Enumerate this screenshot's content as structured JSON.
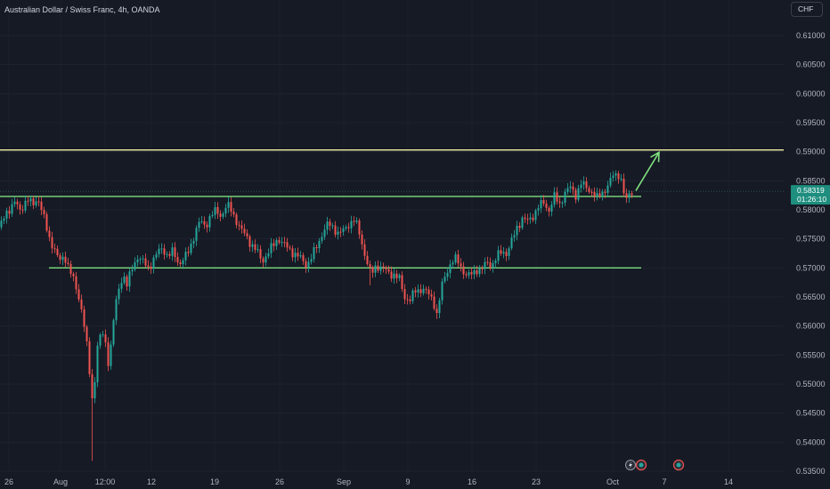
{
  "chart_data": {
    "type": "candlestick",
    "title": "Australian Dollar / Swiss Franc, 4h, OANDA",
    "currency": "CHF",
    "x_labels": [
      "26",
      "Aug",
      "12:00",
      "12",
      "19",
      "26",
      "Sep",
      "9",
      "16",
      "23",
      "Oct",
      "7",
      "14"
    ],
    "y_ticks": [
      "0.61000",
      "0.60500",
      "0.60000",
      "0.59500",
      "0.59000",
      "0.58500",
      "0.58000",
      "0.57500",
      "0.57000",
      "0.56500",
      "0.56000",
      "0.55500",
      "0.55000",
      "0.54500",
      "0.54000",
      "0.53500"
    ],
    "ylim": [
      0.5345,
      0.6142
    ],
    "current_price": "0.58319",
    "countdown": "01:26:10",
    "horizontal_levels": [
      {
        "value": 0.5903,
        "color": "#f3f0a8"
      },
      {
        "value": 0.5823,
        "color": "#7ee07e"
      },
      {
        "value": 0.57,
        "color": "#7ee07e"
      }
    ],
    "arrow": {
      "from": 0.5833,
      "to": 0.5899,
      "color": "#7ee07e"
    },
    "path": [
      [
        0.577,
        0
      ],
      [
        0.5795,
        6
      ],
      [
        0.5812,
        16
      ],
      [
        0.58,
        22
      ],
      [
        0.5818,
        30
      ],
      [
        0.5808,
        36
      ],
      [
        0.5822,
        42
      ],
      [
        0.579,
        48
      ],
      [
        0.5755,
        54
      ],
      [
        0.5735,
        60
      ],
      [
        0.571,
        66
      ],
      [
        0.5722,
        72
      ],
      [
        0.5695,
        78
      ],
      [
        0.567,
        84
      ],
      [
        0.564,
        90
      ],
      [
        0.558,
        96
      ],
      [
        0.552,
        100
      ],
      [
        0.546,
        104
      ],
      [
        0.556,
        108
      ],
      [
        0.559,
        114
      ],
      [
        0.557,
        118
      ],
      [
        0.553,
        122
      ],
      [
        0.56,
        126
      ],
      [
        0.566,
        132
      ],
      [
        0.569,
        138
      ],
      [
        0.567,
        142
      ],
      [
        0.57,
        148
      ],
      [
        0.572,
        154
      ],
      [
        0.571,
        160
      ],
      [
        0.57,
        166
      ],
      [
        0.571,
        170
      ],
      [
        0.5725,
        176
      ],
      [
        0.5735,
        182
      ],
      [
        0.572,
        188
      ],
      [
        0.5728,
        194
      ],
      [
        0.5708,
        200
      ],
      [
        0.5715,
        206
      ],
      [
        0.573,
        212
      ],
      [
        0.576,
        218
      ],
      [
        0.578,
        224
      ],
      [
        0.5772,
        230
      ],
      [
        0.579,
        236
      ],
      [
        0.5798,
        242
      ],
      [
        0.579,
        248
      ],
      [
        0.5808,
        254
      ],
      [
        0.5802,
        258
      ],
      [
        0.5785,
        264
      ],
      [
        0.5765,
        270
      ],
      [
        0.5755,
        276
      ],
      [
        0.574,
        282
      ],
      [
        0.5728,
        288
      ],
      [
        0.5712,
        294
      ],
      [
        0.5725,
        300
      ],
      [
        0.5738,
        306
      ],
      [
        0.5752,
        312
      ],
      [
        0.574,
        318
      ],
      [
        0.573,
        326
      ],
      [
        0.5722,
        332
      ],
      [
        0.5715,
        338
      ],
      [
        0.5705,
        344
      ],
      [
        0.572,
        350
      ],
      [
        0.574,
        356
      ],
      [
        0.5762,
        362
      ],
      [
        0.5775,
        368
      ],
      [
        0.577,
        374
      ],
      [
        0.5758,
        380
      ],
      [
        0.5765,
        386
      ],
      [
        0.5778,
        392
      ],
      [
        0.5782,
        398
      ],
      [
        0.5755,
        404
      ],
      [
        0.5718,
        410
      ],
      [
        0.5688,
        416
      ],
      [
        0.5705,
        422
      ],
      [
        0.57,
        428
      ],
      [
        0.5692,
        436
      ],
      [
        0.5688,
        442
      ],
      [
        0.568,
        448
      ],
      [
        0.565,
        454
      ],
      [
        0.5645,
        460
      ],
      [
        0.566,
        466
      ],
      [
        0.5665,
        474
      ],
      [
        0.5655,
        480
      ],
      [
        0.5645,
        486
      ],
      [
        0.562,
        490
      ],
      [
        0.567,
        496
      ],
      [
        0.569,
        500
      ],
      [
        0.571,
        506
      ],
      [
        0.5715,
        512
      ],
      [
        0.57,
        518
      ],
      [
        0.5685,
        524
      ],
      [
        0.569,
        530
      ],
      [
        0.57,
        536
      ],
      [
        0.5695,
        540
      ],
      [
        0.571,
        546
      ],
      [
        0.5705,
        552
      ],
      [
        0.572,
        558
      ],
      [
        0.573,
        564
      ],
      [
        0.5725,
        568
      ],
      [
        0.5745,
        574
      ],
      [
        0.577,
        580
      ],
      [
        0.5785,
        586
      ],
      [
        0.578,
        592
      ],
      [
        0.579,
        598
      ],
      [
        0.5805,
        604
      ],
      [
        0.5812,
        610
      ],
      [
        0.58,
        616
      ],
      [
        0.5822,
        622
      ],
      [
        0.581,
        628
      ],
      [
        0.583,
        634
      ],
      [
        0.5838,
        640
      ],
      [
        0.5826,
        646
      ],
      [
        0.5845,
        652
      ],
      [
        0.5838,
        658
      ],
      [
        0.5832,
        664
      ],
      [
        0.582,
        670
      ],
      [
        0.583,
        676
      ],
      [
        0.5842,
        682
      ],
      [
        0.5858,
        688
      ],
      [
        0.5862,
        694
      ],
      [
        0.5848,
        698
      ],
      [
        0.581,
        702
      ],
      [
        0.5828,
        706
      ],
      [
        0.5832,
        710
      ]
    ]
  },
  "markers": [
    "lightning-icon",
    "dividend-icon",
    "dividend-icon"
  ]
}
